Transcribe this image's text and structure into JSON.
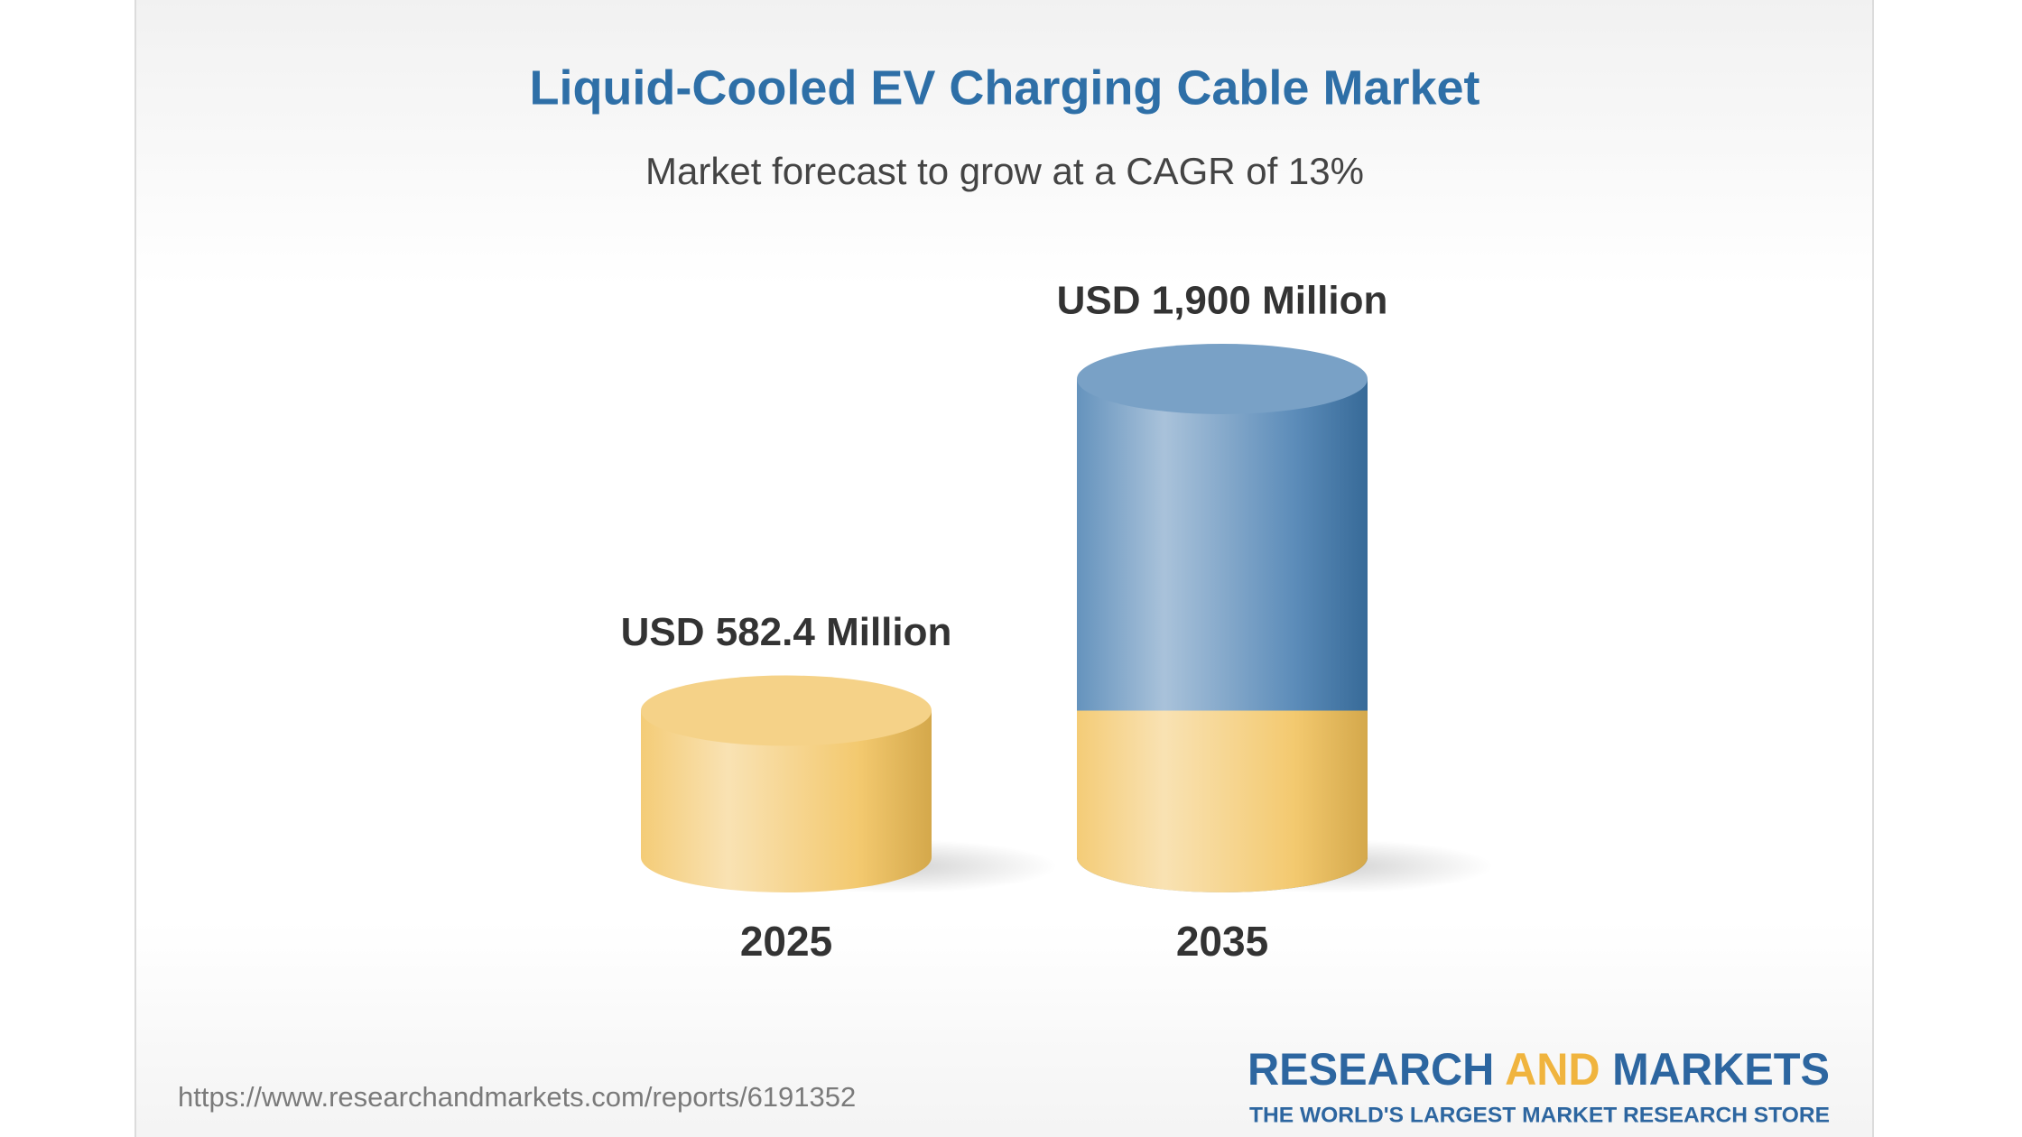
{
  "chart_data": {
    "type": "cylinder",
    "title": "Liquid-Cooled EV Charging Cable Market",
    "subtitle": "Market forecast to grow at a CAGR of 13%",
    "categories": [
      "2025",
      "2035"
    ],
    "values": [
      582.4,
      1900
    ],
    "value_labels": [
      "USD 582.4 Million",
      "USD 1,900 Million"
    ],
    "colors": [
      "#f1bf55",
      "#3f78ad"
    ]
  },
  "footer": {
    "source": "https://www.researchandmarkets.com/reports/6191352",
    "brand": [
      "RESEARCH",
      "AND",
      "MARKETS"
    ],
    "tagline": "THE WORLD'S LARGEST MARKET RESEARCH STORE"
  }
}
